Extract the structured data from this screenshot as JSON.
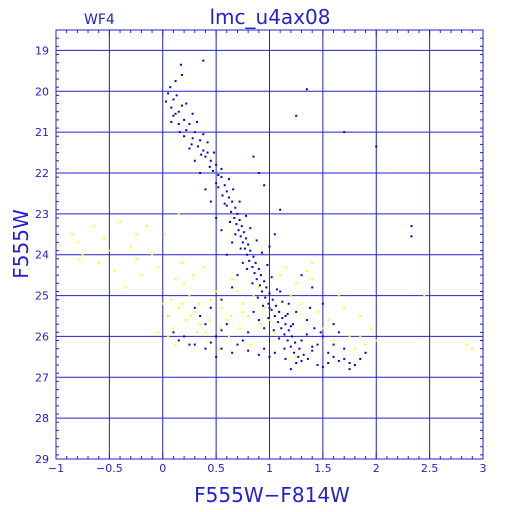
{
  "chart_data": {
    "type": "scatter",
    "panel_label": "WF4",
    "title": "lmc_u4ax08",
    "xlabel": "F555W−F814W",
    "ylabel": "F555W",
    "xlim": [
      -1,
      3
    ],
    "ylim": [
      29,
      18.5
    ],
    "y_inverted": true,
    "grid": true,
    "x_ticks": [
      -1,
      -0.5,
      0,
      0.5,
      1,
      1.5,
      2,
      2.5,
      3
    ],
    "x_tick_labels": [
      "−1",
      "−0.5",
      "0",
      "0.5",
      "1",
      "1.5",
      "2",
      "2.5",
      "3"
    ],
    "y_ticks": [
      19,
      20,
      21,
      22,
      23,
      24,
      25,
      26,
      27,
      28,
      29
    ],
    "y_tick_labels": [
      "19",
      "20",
      "21",
      "22",
      "23",
      "24",
      "25",
      "26",
      "27",
      "28",
      "29"
    ],
    "series": [
      {
        "color": "#0000cc",
        "points": [
          [
            0.07,
            19.9
          ],
          [
            0.05,
            20.05
          ],
          [
            0.1,
            20.2
          ],
          [
            0.03,
            20.25
          ],
          [
            0.13,
            20.1
          ],
          [
            0.08,
            20.4
          ],
          [
            0.15,
            20.5
          ],
          [
            0.12,
            19.75
          ],
          [
            0.18,
            19.6
          ],
          [
            0.17,
            19.35
          ],
          [
            0.2,
            20.7
          ],
          [
            0.25,
            20.8
          ],
          [
            0.22,
            20.95
          ],
          [
            0.3,
            21.0
          ],
          [
            0.28,
            21.15
          ],
          [
            0.35,
            21.2
          ],
          [
            0.33,
            21.35
          ],
          [
            0.38,
            21.45
          ],
          [
            0.4,
            21.6
          ],
          [
            0.42,
            21.5
          ],
          [
            0.45,
            21.7
          ],
          [
            0.5,
            21.8
          ],
          [
            0.47,
            21.95
          ],
          [
            0.52,
            22.05
          ],
          [
            0.55,
            22.1
          ],
          [
            0.5,
            22.25
          ],
          [
            0.58,
            22.3
          ],
          [
            0.6,
            22.45
          ],
          [
            0.56,
            22.55
          ],
          [
            0.62,
            22.6
          ],
          [
            0.65,
            22.7
          ],
          [
            0.6,
            22.8
          ],
          [
            0.68,
            22.85
          ],
          [
            0.64,
            22.95
          ],
          [
            0.7,
            23.0
          ],
          [
            0.67,
            23.1
          ],
          [
            0.72,
            23.15
          ],
          [
            0.69,
            23.25
          ],
          [
            0.74,
            23.3
          ],
          [
            0.71,
            23.4
          ],
          [
            0.76,
            23.45
          ],
          [
            0.73,
            23.55
          ],
          [
            0.78,
            23.6
          ],
          [
            0.75,
            23.7
          ],
          [
            0.8,
            23.75
          ],
          [
            0.77,
            23.85
          ],
          [
            0.82,
            23.9
          ],
          [
            0.79,
            24.0
          ],
          [
            0.85,
            24.05
          ],
          [
            0.81,
            24.15
          ],
          [
            0.87,
            24.2
          ],
          [
            0.84,
            24.3
          ],
          [
            0.9,
            24.35
          ],
          [
            0.86,
            24.45
          ],
          [
            0.92,
            24.5
          ],
          [
            0.88,
            24.6
          ],
          [
            0.95,
            24.65
          ],
          [
            0.91,
            24.75
          ],
          [
            0.97,
            24.8
          ],
          [
            0.93,
            24.9
          ],
          [
            1.0,
            24.95
          ],
          [
            0.96,
            25.05
          ],
          [
            1.03,
            25.1
          ],
          [
            0.99,
            25.2
          ],
          [
            1.06,
            25.25
          ],
          [
            1.02,
            25.35
          ],
          [
            1.09,
            25.4
          ],
          [
            1.05,
            25.5
          ],
          [
            1.12,
            25.55
          ],
          [
            1.08,
            25.65
          ],
          [
            1.15,
            25.7
          ],
          [
            1.11,
            25.8
          ],
          [
            1.18,
            25.85
          ],
          [
            1.14,
            25.95
          ],
          [
            1.21,
            26.0
          ],
          [
            1.17,
            26.1
          ],
          [
            1.24,
            26.15
          ],
          [
            1.2,
            26.25
          ],
          [
            1.28,
            26.3
          ],
          [
            1.23,
            26.4
          ],
          [
            1.32,
            26.45
          ],
          [
            1.27,
            26.5
          ],
          [
            1.36,
            26.55
          ],
          [
            1.3,
            26.6
          ],
          [
            1.4,
            26.35
          ],
          [
            1.45,
            26.2
          ],
          [
            1.5,
            26.0
          ],
          [
            1.55,
            26.4
          ],
          [
            1.6,
            26.5
          ],
          [
            1.65,
            26.6
          ],
          [
            1.7,
            26.55
          ],
          [
            1.75,
            26.65
          ],
          [
            1.35,
            25.6
          ],
          [
            1.42,
            25.8
          ],
          [
            1.48,
            25.9
          ],
          [
            1.25,
            25.4
          ],
          [
            1.18,
            25.2
          ],
          [
            1.1,
            24.9
          ],
          [
            0.9,
            25.6
          ],
          [
            0.85,
            25.4
          ],
          [
            0.8,
            25.9
          ],
          [
            0.75,
            26.1
          ],
          [
            0.7,
            26.2
          ],
          [
            0.95,
            26.3
          ],
          [
            1.05,
            26.4
          ],
          [
            0.6,
            25.7
          ],
          [
            0.55,
            25.85
          ],
          [
            0.5,
            26.0
          ],
          [
            0.45,
            26.15
          ],
          [
            0.4,
            26.3
          ],
          [
            0.35,
            25.5
          ],
          [
            0.3,
            26.2
          ],
          [
            0.2,
            26.0
          ],
          [
            0.45,
            25.3
          ],
          [
            0.55,
            25.1
          ],
          [
            0.65,
            24.8
          ],
          [
            0.7,
            24.5
          ],
          [
            0.75,
            24.2
          ],
          [
            0.6,
            24.0
          ],
          [
            0.65,
            23.7
          ],
          [
            0.55,
            23.4
          ],
          [
            0.5,
            23.1
          ],
          [
            0.45,
            22.7
          ],
          [
            0.4,
            22.4
          ],
          [
            0.35,
            22.0
          ],
          [
            0.3,
            21.7
          ],
          [
            0.25,
            21.4
          ],
          [
            0.2,
            21.1
          ],
          [
            0.15,
            20.8
          ],
          [
            0.1,
            20.6
          ],
          [
            1.0,
            23.8
          ],
          [
            1.05,
            23.5
          ],
          [
            1.1,
            22.9
          ],
          [
            0.95,
            22.3
          ],
          [
            0.85,
            21.6
          ],
          [
            0.9,
            22.0
          ],
          [
            1.4,
            24.8
          ],
          [
            1.5,
            25.2
          ],
          [
            1.3,
            24.5
          ],
          [
            1.6,
            25.7
          ],
          [
            1.7,
            26.3
          ],
          [
            1.8,
            26.7
          ],
          [
            1.85,
            26.55
          ],
          [
            1.9,
            26.4
          ],
          [
            1.55,
            26.65
          ],
          [
            1.45,
            26.7
          ],
          [
            1.25,
            26.65
          ],
          [
            1.15,
            26.55
          ],
          [
            1.0,
            26.5
          ],
          [
            0.9,
            26.45
          ],
          [
            0.8,
            26.35
          ],
          [
            0.65,
            26.4
          ],
          [
            0.55,
            26.3
          ],
          [
            0.5,
            26.5
          ],
          [
            0.25,
            26.2
          ],
          [
            0.15,
            26.1
          ],
          [
            0.1,
            25.9
          ],
          [
            0.05,
            25.5
          ],
          [
            0.3,
            25.3
          ],
          [
            0.4,
            25.7
          ],
          [
            1.3,
            26.1
          ],
          [
            1.35,
            25.95
          ],
          [
            1.2,
            25.75
          ],
          [
            1.15,
            25.5
          ],
          [
            1.0,
            25.3
          ],
          [
            0.95,
            25.8
          ],
          [
            1.4,
            26.25
          ],
          [
            1.6,
            26.2
          ],
          [
            1.65,
            25.9
          ],
          [
            1.38,
            25.3
          ],
          [
            0.22,
            20.3
          ],
          [
            0.28,
            20.55
          ],
          [
            0.32,
            20.75
          ],
          [
            0.38,
            21.05
          ],
          [
            0.42,
            21.25
          ],
          [
            0.48,
            21.5
          ],
          [
            0.55,
            21.9
          ],
          [
            0.62,
            22.15
          ],
          [
            0.66,
            22.4
          ],
          [
            0.72,
            22.7
          ],
          [
            0.78,
            23.05
          ],
          [
            0.82,
            23.35
          ],
          [
            0.88,
            23.65
          ],
          [
            0.93,
            23.95
          ],
          [
            0.98,
            24.25
          ],
          [
            1.02,
            24.55
          ],
          [
            1.07,
            24.85
          ],
          [
            1.12,
            25.15
          ],
          [
            1.17,
            25.45
          ],
          [
            1.22,
            25.7
          ],
          [
            0.12,
            20.55
          ],
          [
            0.18,
            20.35
          ],
          [
            0.08,
            20.75
          ],
          [
            0.16,
            21.0
          ],
          [
            0.27,
            21.3
          ],
          [
            0.36,
            21.55
          ],
          [
            0.44,
            21.85
          ],
          [
            0.52,
            22.35
          ],
          [
            0.58,
            22.75
          ],
          [
            0.63,
            23.2
          ],
          [
            0.68,
            23.5
          ],
          [
            0.73,
            23.85
          ],
          [
            0.79,
            24.35
          ],
          [
            0.84,
            24.7
          ],
          [
            0.89,
            25.05
          ],
          [
            0.94,
            25.25
          ],
          [
            0.99,
            25.55
          ],
          [
            1.04,
            25.85
          ],
          [
            1.09,
            26.05
          ],
          [
            1.14,
            26.3
          ],
          [
            1.7,
            21.0
          ],
          [
            2.0,
            21.35
          ],
          [
            1.25,
            20.6
          ],
          [
            1.35,
            19.95
          ],
          [
            0.38,
            19.25
          ],
          [
            2.33,
            23.3
          ],
          [
            2.33,
            23.55
          ],
          [
            1.2,
            26.8
          ],
          [
            1.5,
            26.75
          ],
          [
            1.75,
            26.8
          ]
        ]
      },
      {
        "color": "#ffff00",
        "points": [
          [
            -0.8,
            23.7
          ],
          [
            -0.75,
            24.0
          ],
          [
            -0.6,
            24.2
          ],
          [
            -0.55,
            23.6
          ],
          [
            -0.5,
            23.9
          ],
          [
            -0.45,
            24.4
          ],
          [
            -0.35,
            24.8
          ],
          [
            -0.3,
            23.8
          ],
          [
            -0.25,
            24.1
          ],
          [
            -0.2,
            24.5
          ],
          [
            -0.15,
            23.3
          ],
          [
            -0.1,
            24.0
          ],
          [
            -0.05,
            24.3
          ],
          [
            0.0,
            25.2
          ],
          [
            0.05,
            25.5
          ],
          [
            0.1,
            25.8
          ],
          [
            0.15,
            25.3
          ],
          [
            0.2,
            24.7
          ],
          [
            0.25,
            25.0
          ],
          [
            0.3,
            25.4
          ],
          [
            0.35,
            25.7
          ],
          [
            0.4,
            25.9
          ],
          [
            0.45,
            25.1
          ],
          [
            0.5,
            24.9
          ],
          [
            0.55,
            25.3
          ],
          [
            0.6,
            25.6
          ],
          [
            0.65,
            24.6
          ],
          [
            0.7,
            24.9
          ],
          [
            0.75,
            25.2
          ],
          [
            0.8,
            25.5
          ],
          [
            0.85,
            25.0
          ],
          [
            0.9,
            24.8
          ],
          [
            0.95,
            25.3
          ],
          [
            1.0,
            25.6
          ],
          [
            1.05,
            25.9
          ],
          [
            1.1,
            24.5
          ],
          [
            1.15,
            24.3
          ],
          [
            1.2,
            25.0
          ],
          [
            1.25,
            24.7
          ],
          [
            1.3,
            25.2
          ],
          [
            1.35,
            24.4
          ],
          [
            1.4,
            24.6
          ],
          [
            1.45,
            25.4
          ],
          [
            1.5,
            25.8
          ],
          [
            1.55,
            25.6
          ],
          [
            1.6,
            26.1
          ],
          [
            1.65,
            25.0
          ],
          [
            1.7,
            25.3
          ],
          [
            1.75,
            26.0
          ],
          [
            1.8,
            26.3
          ],
          [
            1.85,
            26.0
          ],
          [
            1.9,
            26.2
          ],
          [
            1.95,
            25.8
          ],
          [
            2.0,
            26.1
          ],
          [
            -0.05,
            25.9
          ],
          [
            0.05,
            26.0
          ],
          [
            0.12,
            26.2
          ],
          [
            0.22,
            25.6
          ],
          [
            0.32,
            25.9
          ],
          [
            0.42,
            26.1
          ],
          [
            0.52,
            26.3
          ],
          [
            0.62,
            26.0
          ],
          [
            0.72,
            25.8
          ],
          [
            0.82,
            26.2
          ],
          [
            0.92,
            25.7
          ],
          [
            -0.65,
            23.3
          ],
          [
            -0.4,
            23.2
          ],
          [
            -0.25,
            23.5
          ],
          [
            0.18,
            24.2
          ],
          [
            0.28,
            24.5
          ],
          [
            0.38,
            24.3
          ],
          [
            0.12,
            24.6
          ],
          [
            0.08,
            25.1
          ],
          [
            0.18,
            25.2
          ],
          [
            0.26,
            25.5
          ],
          [
            0.34,
            25.2
          ],
          [
            0.44,
            25.6
          ],
          [
            0.54,
            25.8
          ],
          [
            0.64,
            25.5
          ],
          [
            0.74,
            25.4
          ],
          [
            2.85,
            26.2
          ],
          [
            2.9,
            26.3
          ],
          [
            1.85,
            25.5
          ],
          [
            2.45,
            25.0
          ],
          [
            0.15,
            23.0
          ],
          [
            0.02,
            23.5
          ],
          [
            -0.85,
            23.5
          ],
          [
            -0.78,
            24.1
          ],
          [
            1.4,
            24.2
          ],
          [
            1.25,
            26.5
          ]
        ]
      }
    ]
  }
}
